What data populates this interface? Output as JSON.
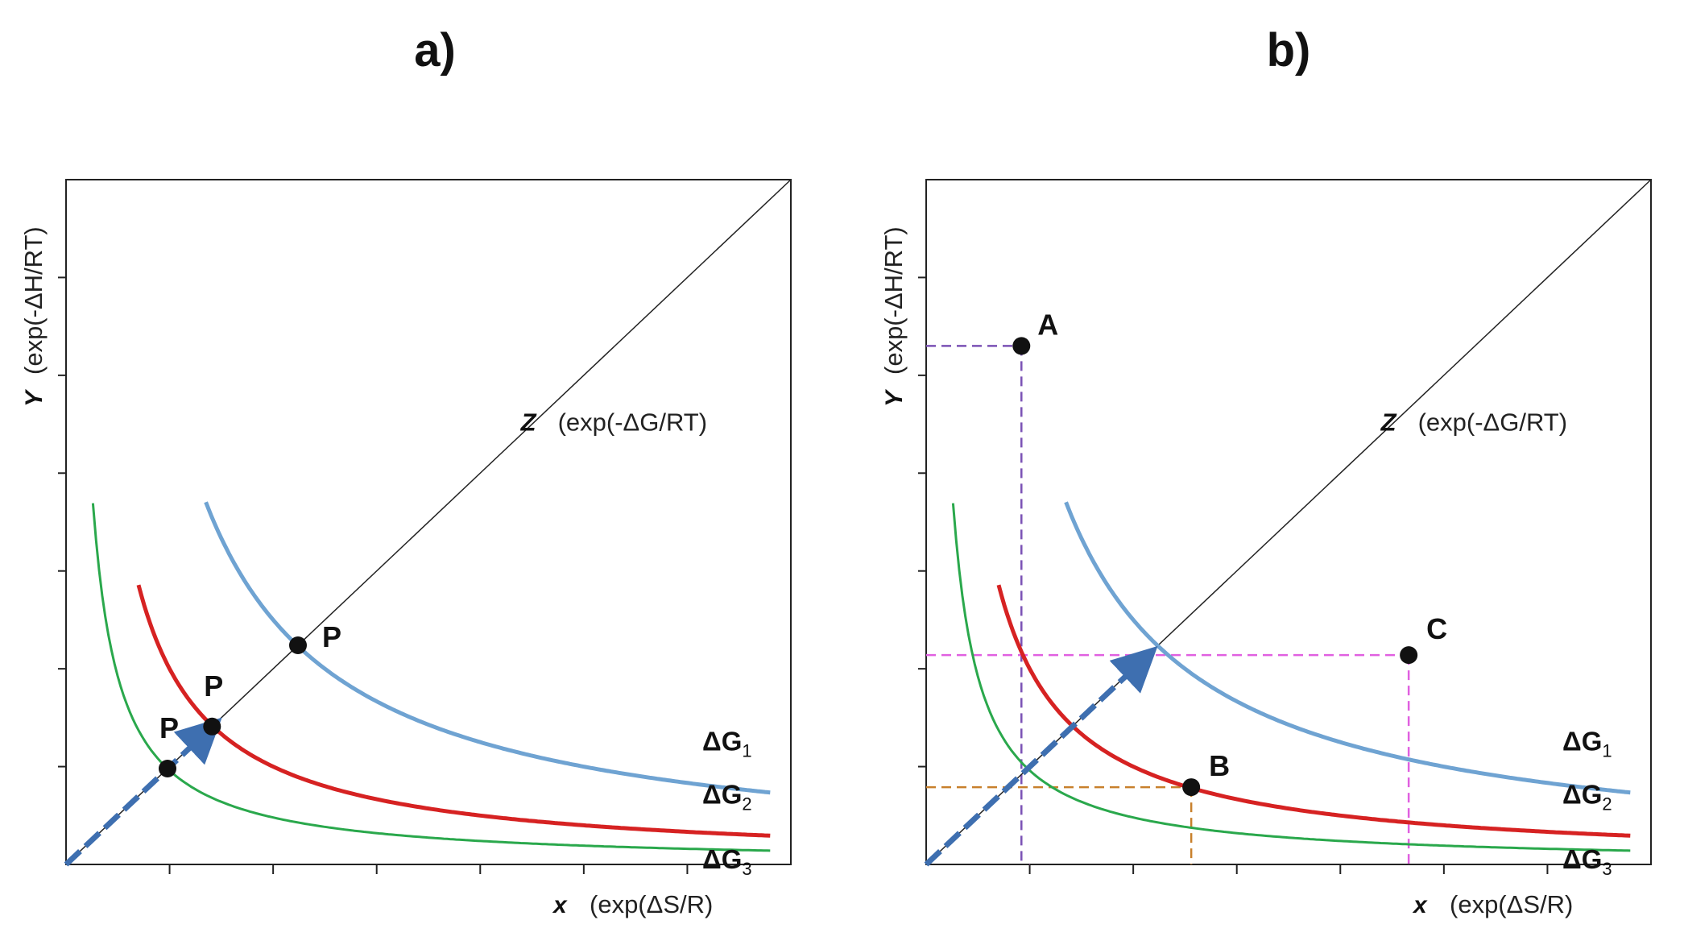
{
  "chart_data": [
    {
      "type": "line",
      "panel": "a)",
      "xlim": [
        0,
        7
      ],
      "ylim": [
        0,
        7
      ],
      "grid": false,
      "xlabel": {
        "symbol": "x",
        "expr": "(exp(ΔS/R)"
      },
      "ylabel": {
        "symbol": "Y",
        "expr": "(exp(-ΔH/RT)"
      },
      "diagonal_label": {
        "symbol": "Z",
        "expr": "(exp(-ΔG/RT)"
      },
      "series": [
        {
          "name": "ΔG",
          "subscript": "1",
          "color": "#6fa3d2",
          "k": 5.0,
          "xrange": [
            1.35,
            6.8
          ]
        },
        {
          "name": "ΔG",
          "subscript": "2",
          "color": "#d62222",
          "k": 2.0,
          "xrange": [
            0.7,
            6.8
          ]
        },
        {
          "name": "ΔG",
          "subscript": "3",
          "color": "#2aa84c",
          "k": 0.96,
          "xrange": [
            0.26,
            6.8
          ]
        }
      ],
      "points": [
        {
          "label": "P",
          "x": 2.24,
          "y": 2.24
        },
        {
          "label": "P",
          "x": 1.41,
          "y": 1.41
        },
        {
          "label": "P",
          "x": 0.98,
          "y": 0.98
        }
      ],
      "arrow": {
        "from": [
          0,
          0
        ],
        "to": [
          1.41,
          2.24
        ],
        "color": "#3e6fb0"
      },
      "guides": []
    },
    {
      "type": "line",
      "panel": "b)",
      "xlim": [
        0,
        7
      ],
      "ylim": [
        0,
        7
      ],
      "grid": false,
      "xlabel": {
        "symbol": "x",
        "expr": "(exp(ΔS/R)"
      },
      "ylabel": {
        "symbol": "Y",
        "expr": "(exp(-ΔH/RT)"
      },
      "diagonal_label": {
        "symbol": "Z",
        "expr": "(exp(-ΔG/RT)"
      },
      "series": [
        {
          "name": "ΔG",
          "subscript": "1",
          "color": "#6fa3d2",
          "k": 5.0,
          "xrange": [
            1.35,
            6.8
          ]
        },
        {
          "name": "ΔG",
          "subscript": "2",
          "color": "#d62222",
          "k": 2.0,
          "xrange": [
            0.7,
            6.8
          ]
        },
        {
          "name": "ΔG",
          "subscript": "3",
          "color": "#2aa84c",
          "k": 0.96,
          "xrange": [
            0.26,
            6.8
          ]
        }
      ],
      "points": [
        {
          "label": "A",
          "x": 0.92,
          "y": 5.3
        },
        {
          "label": "B",
          "x": 2.56,
          "y": 0.79
        },
        {
          "label": "C",
          "x": 4.66,
          "y": 2.14
        }
      ],
      "arrow": {
        "from": [
          0,
          0
        ],
        "to": [
          2.14,
          2.14
        ],
        "color": "#3e6fb0"
      },
      "guides": [
        {
          "x": 0.92,
          "y": 5.3,
          "color": "#7b52b5"
        },
        {
          "x": 2.56,
          "y": 0.79,
          "color": "#c8802c"
        },
        {
          "x": 4.66,
          "y": 2.14,
          "color": "#e060e0",
          "from_x": 0
        },
        {
          "x": 1.0,
          "y": 0,
          "color": "#e060e0",
          "vertical_only": true
        }
      ]
    }
  ]
}
